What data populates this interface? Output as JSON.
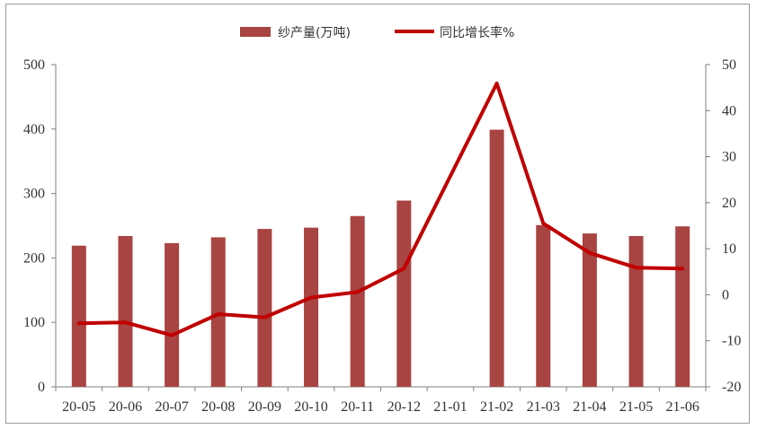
{
  "chart_data": {
    "type": "bar+line",
    "categories": [
      "20-05",
      "20-06",
      "20-07",
      "20-08",
      "20-09",
      "20-10",
      "20-11",
      "20-12",
      "21-01",
      "21-02",
      "21-03",
      "21-04",
      "21-05",
      "21-06"
    ],
    "series": [
      {
        "name": "纱产量(万吨)",
        "type": "bar",
        "axis": "left",
        "color": "#A84442",
        "values": [
          219,
          234,
          223,
          232,
          245,
          247,
          265,
          289,
          null,
          399,
          251,
          238,
          234,
          249
        ]
      },
      {
        "name": "同比增长率%",
        "type": "line",
        "axis": "right",
        "color": "#C00000",
        "values": [
          -6.2,
          -6.0,
          -8.8,
          -4.2,
          -4.9,
          -0.6,
          0.6,
          5.7,
          null,
          45.9,
          15.5,
          9.1,
          5.9,
          5.7
        ]
      }
    ],
    "y_left": {
      "min": 0,
      "max": 500,
      "ticks": [
        "0",
        "100",
        "200",
        "300",
        "400",
        "500"
      ]
    },
    "y_right": {
      "min": -20,
      "max": 50,
      "ticks": [
        "-20",
        "-10",
        "0",
        "10",
        "20",
        "30",
        "40",
        "50"
      ]
    },
    "legend_position": "top-center",
    "grid": false
  }
}
